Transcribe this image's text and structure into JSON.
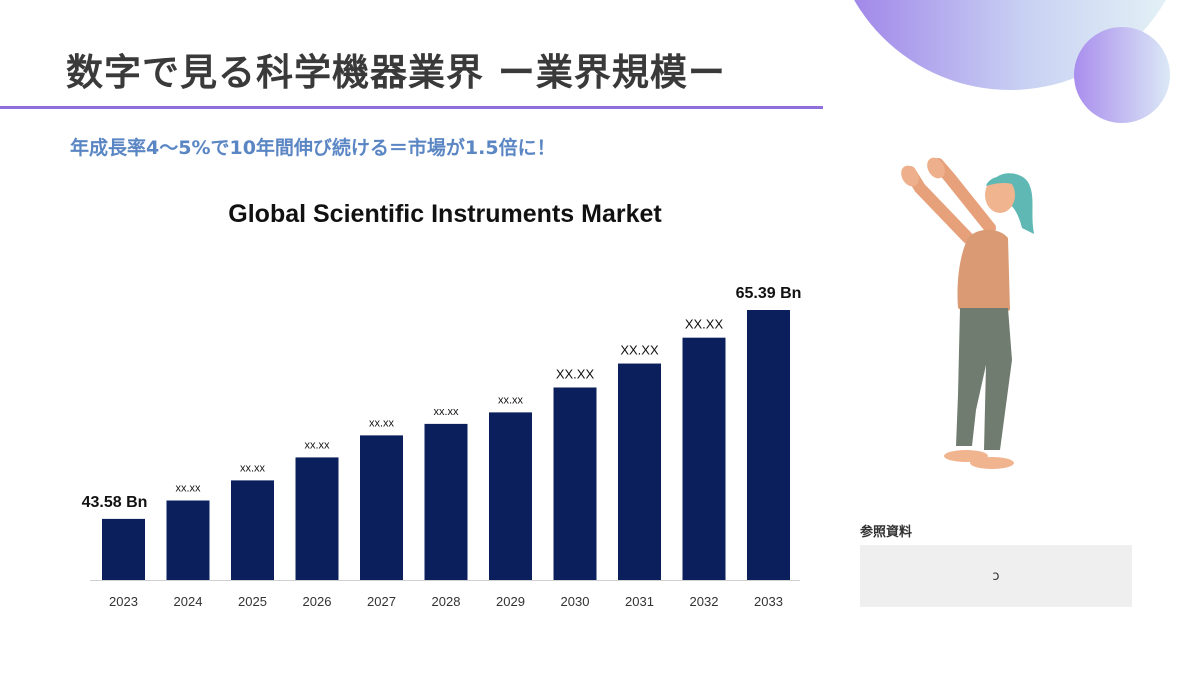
{
  "page": {
    "title": "数字で見る科学機器業界 ー業界規模ー",
    "subtitle": "年成長率4〜5%で10年間伸び続ける＝市場が1.5倍に！",
    "accent_color": "#8f6fdc",
    "subtitle_color": "#5b86c4"
  },
  "reference": {
    "label": "参照資料",
    "content": "ɔ"
  },
  "illustration": {
    "icon": "woman-reaching-up-illustration"
  },
  "chart_data": {
    "type": "bar",
    "title": "Global Scientific Instruments Market",
    "xlabel": "",
    "ylabel": "",
    "categories": [
      "2023",
      "2024",
      "2025",
      "2026",
      "2027",
      "2028",
      "2029",
      "2030",
      "2031",
      "2032",
      "2033"
    ],
    "values": [
      43.58,
      45.5,
      47.6,
      50.0,
      52.3,
      53.5,
      54.7,
      57.3,
      59.8,
      62.5,
      65.39
    ],
    "data_labels": [
      "43.58 Bn",
      "xx.xx",
      "xx.xx",
      "xx.xx",
      "xx.xx",
      "xx.xx",
      "xx.xx",
      "XX.XX",
      "XX.XX",
      "XX.XX",
      "65.39 Bn"
    ],
    "bar_color": "#0b1f5c",
    "ylim": [
      37.2,
      67
    ],
    "grid": false,
    "legend": "none"
  }
}
